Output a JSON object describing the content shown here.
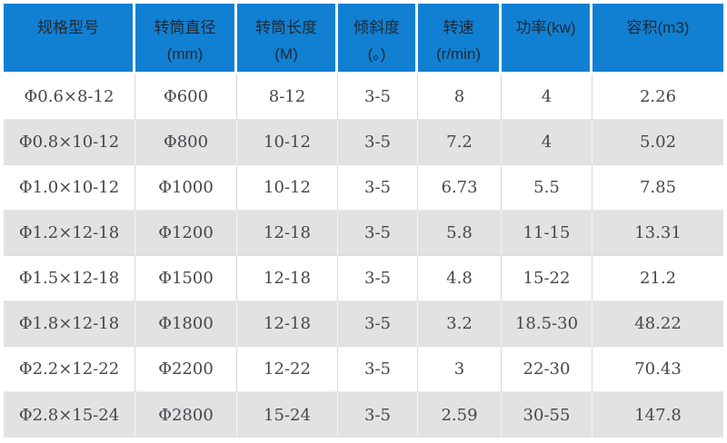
{
  "table": {
    "colors": {
      "header_bg": "#1180d2",
      "header_text": "#1d2833",
      "body_text": "#45474c",
      "alt_row_bg": "#e2e2e2",
      "grid_line": "#d8d8d8"
    },
    "columns": [
      {
        "title": "规格型号",
        "unit": ""
      },
      {
        "title": "转筒直径",
        "unit": "(mm)"
      },
      {
        "title": "转筒长度",
        "unit": "(M)"
      },
      {
        "title": "倾斜度",
        "unit": "(。)"
      },
      {
        "title": "转速",
        "unit": "(r/min)"
      },
      {
        "title": "功率(kw)",
        "unit": ""
      },
      {
        "title": "容积(m3)",
        "unit": ""
      }
    ],
    "rows": [
      [
        "Φ0.6×8-12",
        "Φ600",
        "8-12",
        "3-5",
        "8",
        "4",
        "2.26"
      ],
      [
        "Φ0.8×10-12",
        "Φ800",
        "10-12",
        "3-5",
        "7.2",
        "4",
        "5.02"
      ],
      [
        "Φ1.0×10-12",
        "Φ1000",
        "10-12",
        "3-5",
        "6.73",
        "5.5",
        "7.85"
      ],
      [
        "Φ1.2×12-18",
        "Φ1200",
        "12-18",
        "3-5",
        "5.8",
        "11-15",
        "13.31"
      ],
      [
        "Φ1.5×12-18",
        "Φ1500",
        "12-18",
        "3-5",
        "4.8",
        "15-22",
        "21.2"
      ],
      [
        "Φ1.8×12-18",
        "Φ1800",
        "12-18",
        "3-5",
        "3.2",
        "18.5-30",
        "48.22"
      ],
      [
        "Φ2.2×12-22",
        "Φ2200",
        "12-22",
        "3-5",
        "3",
        "22-30",
        "70.43"
      ],
      [
        "Φ2.8×15-24",
        "Φ2800",
        "15-24",
        "3-5",
        "2.59",
        "30-55",
        "147.8"
      ]
    ]
  }
}
